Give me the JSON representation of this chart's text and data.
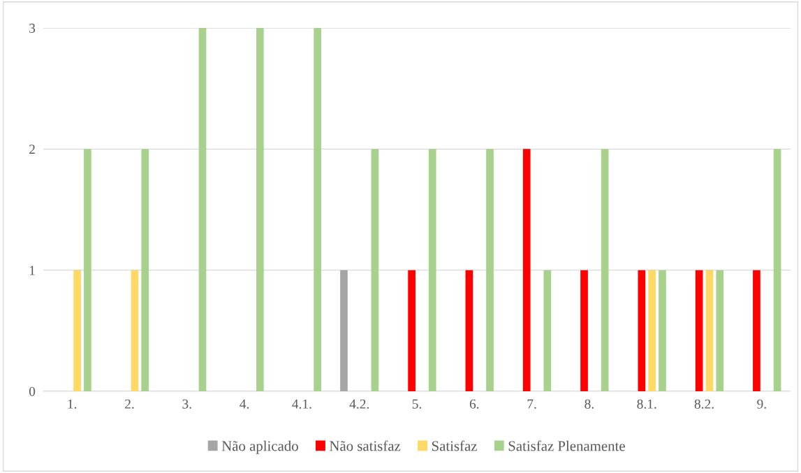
{
  "chart_data": {
    "type": "bar",
    "categories": [
      "1.",
      "2.",
      "3.",
      "4.",
      "4.1.",
      "4.2.",
      "5.",
      "6.",
      "7.",
      "8.",
      "8.1.",
      "8.2.",
      "9."
    ],
    "series": [
      {
        "name": "Não aplicado",
        "color": "#a5a5a5",
        "values": [
          null,
          null,
          null,
          null,
          null,
          1,
          null,
          null,
          null,
          null,
          null,
          null,
          null
        ]
      },
      {
        "name": "Não satisfaz",
        "color": "#ff0000",
        "values": [
          null,
          null,
          null,
          null,
          null,
          null,
          1,
          1,
          2,
          1,
          1,
          1,
          1
        ]
      },
      {
        "name": "Satisfaz",
        "color": "#ffd966",
        "values": [
          1,
          1,
          null,
          null,
          null,
          null,
          null,
          null,
          null,
          null,
          1,
          1,
          null
        ]
      },
      {
        "name": "Satisfaz Plenamente",
        "color": "#a9d18e",
        "values": [
          2,
          2,
          3,
          3,
          3,
          2,
          2,
          2,
          1,
          2,
          1,
          1,
          2
        ]
      }
    ],
    "ylim": [
      0,
      3
    ],
    "yticks": [
      0,
      1,
      2,
      3
    ],
    "grid": "y",
    "legend": "bottom"
  }
}
